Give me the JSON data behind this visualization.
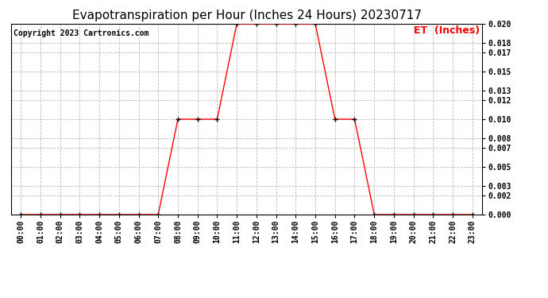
{
  "title": "Evapotranspiration per Hour (Inches 24 Hours) 20230717",
  "copyright": "Copyright 2023 Cartronics.com",
  "legend_label": "ET  (Inches)",
  "hours": [
    "00:00",
    "01:00",
    "02:00",
    "03:00",
    "04:00",
    "05:00",
    "06:00",
    "07:00",
    "08:00",
    "09:00",
    "10:00",
    "11:00",
    "12:00",
    "13:00",
    "14:00",
    "15:00",
    "16:00",
    "17:00",
    "18:00",
    "19:00",
    "20:00",
    "21:00",
    "22:00",
    "23:00"
  ],
  "values": [
    0.0,
    0.0,
    0.0,
    0.0,
    0.0,
    0.0,
    0.0,
    0.0,
    0.01,
    0.01,
    0.01,
    0.02,
    0.02,
    0.02,
    0.02,
    0.02,
    0.01,
    0.01,
    0.0,
    0.0,
    0.0,
    0.0,
    0.0,
    0.0
  ],
  "line_color": "red",
  "marker_color": "black",
  "grid_color": "#bbbbbb",
  "background_color": "#ffffff",
  "title_fontsize": 11,
  "copyright_fontsize": 7,
  "legend_fontsize": 9,
  "tick_fontsize": 7,
  "ylim": [
    0.0,
    0.02
  ],
  "yticks": [
    0.0,
    0.002,
    0.003,
    0.005,
    0.007,
    0.008,
    0.01,
    0.012,
    0.013,
    0.015,
    0.017,
    0.018,
    0.02
  ]
}
